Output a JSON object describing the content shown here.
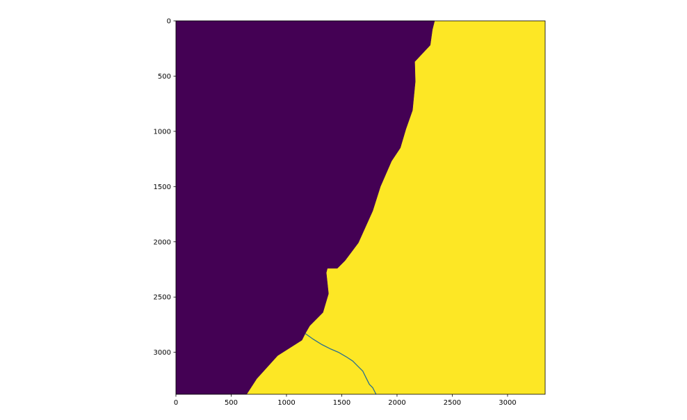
{
  "chart_data": {
    "type": "heatmap",
    "title": "",
    "xlabel": "",
    "ylabel": "",
    "xlim": [
      0,
      3340
    ],
    "ylim": [
      3380,
      0
    ],
    "y_axis_inverted": true,
    "grid": false,
    "colormap": "viridis",
    "colors": {
      "low": "#440154",
      "high": "#fde725",
      "boundary_line": "#2b6f8e"
    },
    "x_ticks": [
      0,
      500,
      1000,
      1500,
      2000,
      2500,
      3000
    ],
    "x_tick_labels": [
      "0",
      "500",
      "1000",
      "1500",
      "2000",
      "2500",
      "3000"
    ],
    "y_ticks": [
      0,
      500,
      1000,
      1500,
      2000,
      2500,
      3000
    ],
    "y_tick_labels": [
      "0",
      "500",
      "1000",
      "1500",
      "2000",
      "2500",
      "3000"
    ],
    "regions": [
      {
        "value": "low",
        "boundary": [
          [
            0,
            0
          ],
          [
            2340,
            0
          ],
          [
            2320,
            80
          ],
          [
            2300,
            220
          ],
          [
            2160,
            370
          ],
          [
            2165,
            550
          ],
          [
            2140,
            810
          ],
          [
            2080,
            980
          ],
          [
            2030,
            1150
          ],
          [
            1950,
            1270
          ],
          [
            1850,
            1500
          ],
          [
            1780,
            1720
          ],
          [
            1650,
            2010
          ],
          [
            1530,
            2170
          ],
          [
            1460,
            2240
          ],
          [
            1370,
            2240
          ],
          [
            1360,
            2280
          ],
          [
            1380,
            2470
          ],
          [
            1330,
            2640
          ],
          [
            1210,
            2760
          ],
          [
            1170,
            2830
          ],
          [
            1140,
            2890
          ],
          [
            920,
            3030
          ],
          [
            730,
            3240
          ],
          [
            640,
            3380
          ],
          [
            0,
            3380
          ]
        ]
      }
    ],
    "lines": [
      {
        "name": "",
        "points": [
          [
            1170,
            2830
          ],
          [
            1240,
            2880
          ],
          [
            1320,
            2930
          ],
          [
            1400,
            2970
          ],
          [
            1470,
            3000
          ],
          [
            1540,
            3040
          ],
          [
            1600,
            3080
          ],
          [
            1650,
            3130
          ],
          [
            1690,
            3170
          ],
          [
            1720,
            3230
          ],
          [
            1750,
            3290
          ],
          [
            1780,
            3320
          ],
          [
            1810,
            3380
          ]
        ]
      }
    ]
  }
}
